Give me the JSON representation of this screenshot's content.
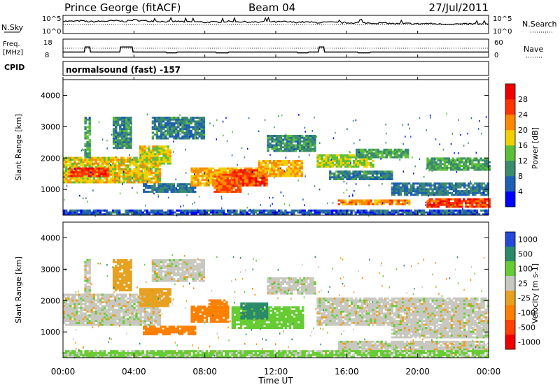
{
  "header": {
    "station": "Prince George (fitACF)",
    "beam": "Beam 04",
    "date": "27/Jul/2011"
  },
  "top_panels": {
    "nsky_label": "N.Sky",
    "nsearch_label": "N.Search",
    "nsky_ticks": [
      "10^5",
      "10^0"
    ],
    "nsky_right_ticks": [
      "10^5",
      "10^0"
    ],
    "freq_label_line1": "Freq.",
    "freq_label_line2": "[MHz]",
    "freq_ticks": [
      "18",
      "8"
    ],
    "nave_label": "Nave",
    "nave_ticks": [
      "60",
      "0"
    ],
    "cpid_label": "CPID",
    "cpid_text": "normalsound (fast) -157"
  },
  "legends": {
    "power": {
      "title": "Power [dB]",
      "ticks": [
        "28",
        "24",
        "20",
        "16",
        "12",
        "8",
        "4"
      ],
      "colors": [
        "#0000ff",
        "#1e5fb4",
        "#3a8a6e",
        "#5cbf3a",
        "#f0d000",
        "#ff8800",
        "#ff3300",
        "#ee0000"
      ]
    },
    "velocity": {
      "title": "Velocity [m s-1]",
      "ticks": [
        "1000",
        "500",
        "100",
        "25",
        "-25",
        "-100",
        "-500",
        "-1000"
      ],
      "colors": [
        "#2448d8",
        "#2a8a6a",
        "#66cc33",
        "#c8c8c0",
        "#e8a020",
        "#ff8000",
        "#ff4000",
        "#ee0000"
      ]
    }
  },
  "chart_data": [
    {
      "type": "line",
      "name": "N.Sky / N.Search",
      "x_unit": "hours UT",
      "x": [
        0,
        0.5,
        1,
        1.5,
        2,
        2.5,
        3,
        3.5,
        4,
        4.5,
        5,
        5.5,
        6,
        6.5,
        7,
        7.5,
        8,
        8.5,
        9,
        9.5,
        10,
        10.5,
        11,
        11.5,
        12,
        12.5,
        13,
        13.5,
        14,
        14.5,
        15,
        15.5,
        16,
        16.5,
        17,
        17.5,
        18,
        18.5,
        19,
        19.5,
        20,
        20.5,
        21,
        21.5,
        22,
        22.5,
        23,
        23.5,
        24
      ],
      "nsky_log10": [
        3.6,
        3.5,
        3.7,
        3.4,
        3.5,
        3.6,
        3.7,
        3.5,
        4.0,
        3.7,
        3.6,
        3.5,
        3.4,
        3.5,
        3.3,
        3.4,
        3.2,
        3.3,
        3.4,
        3.5,
        3.4,
        3.3,
        3.2,
        3.5,
        3.3,
        3.4,
        3.2,
        3.3,
        3.2,
        3.1,
        3.2,
        3.1,
        3.0,
        3.1,
        3.0,
        2.9,
        3.0,
        2.8,
        2.7,
        2.8,
        2.7,
        2.8,
        2.7,
        2.6,
        2.7,
        2.6,
        2.7,
        2.6,
        2.6
      ],
      "nsearch_log10": [
        2.4,
        2.4,
        2.4,
        2.4,
        2.4,
        2.4,
        2.4,
        2.4,
        2.4,
        2.4,
        2.4,
        2.4,
        2.4,
        2.4,
        2.4,
        2.4,
        2.4,
        2.4,
        2.4,
        2.4,
        2.4,
        2.4,
        2.4,
        2.4,
        2.4,
        2.4,
        2.4,
        2.4,
        2.4,
        2.4,
        2.4,
        2.4,
        2.4,
        2.4,
        2.4,
        2.4,
        2.4,
        2.4,
        2.4,
        2.4,
        2.4,
        2.4,
        2.4,
        2.4,
        2.4,
        2.4,
        2.4,
        2.4,
        2.4
      ],
      "ylim": [
        0,
        5
      ]
    },
    {
      "type": "line",
      "name": "Freq. / Nave",
      "x_unit": "hours UT",
      "freq_steps": [
        [
          0,
          10.5
        ],
        [
          1.2,
          10.5
        ],
        [
          1.25,
          13.8
        ],
        [
          1.5,
          13.8
        ],
        [
          1.55,
          10.5
        ],
        [
          3.2,
          10.5
        ],
        [
          3.25,
          13.8
        ],
        [
          3.9,
          13.8
        ],
        [
          3.95,
          10.5
        ],
        [
          5.8,
          10.5
        ],
        [
          5.85,
          10.0
        ],
        [
          6.4,
          10.0
        ],
        [
          6.45,
          10.5
        ],
        [
          8.6,
          10.5
        ],
        [
          8.65,
          10.0
        ],
        [
          9.3,
          10.0
        ],
        [
          9.35,
          10.5
        ],
        [
          13.2,
          10.5
        ],
        [
          13.25,
          10.0
        ],
        [
          13.8,
          10.0
        ],
        [
          13.85,
          10.5
        ],
        [
          14.4,
          10.5
        ],
        [
          14.45,
          13.8
        ],
        [
          14.7,
          13.8
        ],
        [
          14.75,
          10.5
        ],
        [
          16.6,
          10.5
        ],
        [
          16.65,
          10.0
        ],
        [
          17.3,
          10.0
        ],
        [
          17.35,
          10.5
        ],
        [
          24,
          10.5
        ]
      ],
      "nave_level": 30,
      "ylim_freq": [
        8,
        18
      ],
      "ylim_nave": [
        0,
        60
      ]
    },
    {
      "type": "heatmap",
      "name": "Power",
      "x_unit": "hours UT",
      "y_unit": "km",
      "xlim": [
        0,
        24
      ],
      "ylim": [
        180,
        4500
      ],
      "yticks": [
        1000,
        2000,
        3000,
        4000
      ],
      "ylabel": "Slant Range [km]",
      "bands": [
        {
          "t0": 0,
          "t1": 5.5,
          "r0": 1200,
          "r1": 2000,
          "db": 18
        },
        {
          "t0": 0.3,
          "t1": 2.5,
          "r0": 1400,
          "r1": 1700,
          "db": 26
        },
        {
          "t0": 1.2,
          "t1": 1.5,
          "r0": 2000,
          "r1": 3300,
          "db": 12
        },
        {
          "t0": 2.8,
          "t1": 3.8,
          "r0": 2300,
          "r1": 3300,
          "db": 10
        },
        {
          "t0": 4.3,
          "t1": 6.0,
          "r0": 1800,
          "r1": 2400,
          "db": 17
        },
        {
          "t0": 5.0,
          "t1": 8.0,
          "r0": 2600,
          "r1": 3300,
          "db": 9
        },
        {
          "t0": 4.5,
          "t1": 7.5,
          "r0": 900,
          "r1": 1200,
          "db": 8
        },
        {
          "t0": 7.2,
          "t1": 11.0,
          "r0": 1100,
          "r1": 1700,
          "db": 20
        },
        {
          "t0": 8.5,
          "t1": 10.0,
          "r0": 900,
          "r1": 1500,
          "db": 24
        },
        {
          "t0": 9.5,
          "t1": 11.5,
          "r0": 1100,
          "r1": 1600,
          "db": 26
        },
        {
          "t0": 11.0,
          "t1": 13.5,
          "r0": 1400,
          "r1": 1900,
          "db": 20
        },
        {
          "t0": 11.5,
          "t1": 14.2,
          "r0": 2200,
          "r1": 2700,
          "db": 10
        },
        {
          "t0": 14.3,
          "t1": 17.5,
          "r0": 1700,
          "r1": 2100,
          "db": 16
        },
        {
          "t0": 15.0,
          "t1": 18.5,
          "r0": 1300,
          "r1": 1600,
          "db": 9
        },
        {
          "t0": 16.5,
          "t1": 19.5,
          "r0": 2000,
          "r1": 2300,
          "db": 12
        },
        {
          "t0": 18.5,
          "t1": 24.0,
          "r0": 800,
          "r1": 1200,
          "db": 8
        },
        {
          "t0": 20.5,
          "t1": 24.0,
          "r0": 1600,
          "r1": 2000,
          "db": 12
        },
        {
          "t0": 15.5,
          "t1": 19.5,
          "r0": 500,
          "r1": 650,
          "db": 22
        },
        {
          "t0": 20.5,
          "t1": 24.0,
          "r0": 420,
          "r1": 700,
          "db": 26
        },
        {
          "t0": 0,
          "t1": 24.0,
          "r0": 180,
          "r1": 350,
          "db": 6
        }
      ]
    },
    {
      "type": "heatmap",
      "name": "Velocity",
      "x_unit": "hours UT",
      "y_unit": "km",
      "xlim": [
        0,
        24
      ],
      "ylim": [
        180,
        4500
      ],
      "yticks": [
        1000,
        2000,
        3000,
        4000
      ],
      "ylabel": "Slant Range [km]",
      "bands": [
        {
          "t0": 0,
          "t1": 5.5,
          "r0": 1200,
          "r1": 2200,
          "v": 0
        },
        {
          "t0": 1.2,
          "t1": 1.5,
          "r0": 2000,
          "r1": 3300,
          "v": 0
        },
        {
          "t0": 2.8,
          "t1": 3.8,
          "r0": 2300,
          "r1": 3300,
          "v": -60
        },
        {
          "t0": 4.3,
          "t1": 6.0,
          "r0": 1800,
          "r1": 2400,
          "v": -60
        },
        {
          "t0": 5.0,
          "t1": 8.0,
          "r0": 2600,
          "r1": 3300,
          "v": 0
        },
        {
          "t0": 4.5,
          "t1": 7.5,
          "r0": 900,
          "r1": 1200,
          "v": -150
        },
        {
          "t0": 7.2,
          "t1": 9.3,
          "r0": 1300,
          "r1": 1800,
          "v": -150
        },
        {
          "t0": 8.2,
          "t1": 9.2,
          "r0": 1500,
          "r1": 2000,
          "v": -400
        },
        {
          "t0": 9.5,
          "t1": 13.5,
          "r0": 1100,
          "r1": 1800,
          "v": 60
        },
        {
          "t0": 10.0,
          "t1": 11.5,
          "r0": 1400,
          "r1": 1900,
          "v": 200
        },
        {
          "t0": 11.5,
          "t1": 14.2,
          "r0": 2200,
          "r1": 2700,
          "v": 0
        },
        {
          "t0": 14.3,
          "t1": 24.0,
          "r0": 1200,
          "r1": 2100,
          "v": 0
        },
        {
          "t0": 18.5,
          "t1": 24.0,
          "r0": 800,
          "r1": 1200,
          "v": 0
        },
        {
          "t0": 15.5,
          "t1": 24.0,
          "r0": 420,
          "r1": 700,
          "v": 0
        },
        {
          "t0": 0,
          "t1": 24.0,
          "r0": 180,
          "r1": 380,
          "v": 40
        }
      ]
    }
  ],
  "x_axis": {
    "ticks": [
      "00:00",
      "04:00",
      "08:00",
      "12:00",
      "16:00",
      "20:00",
      "00:00"
    ],
    "title": "Time UT"
  }
}
